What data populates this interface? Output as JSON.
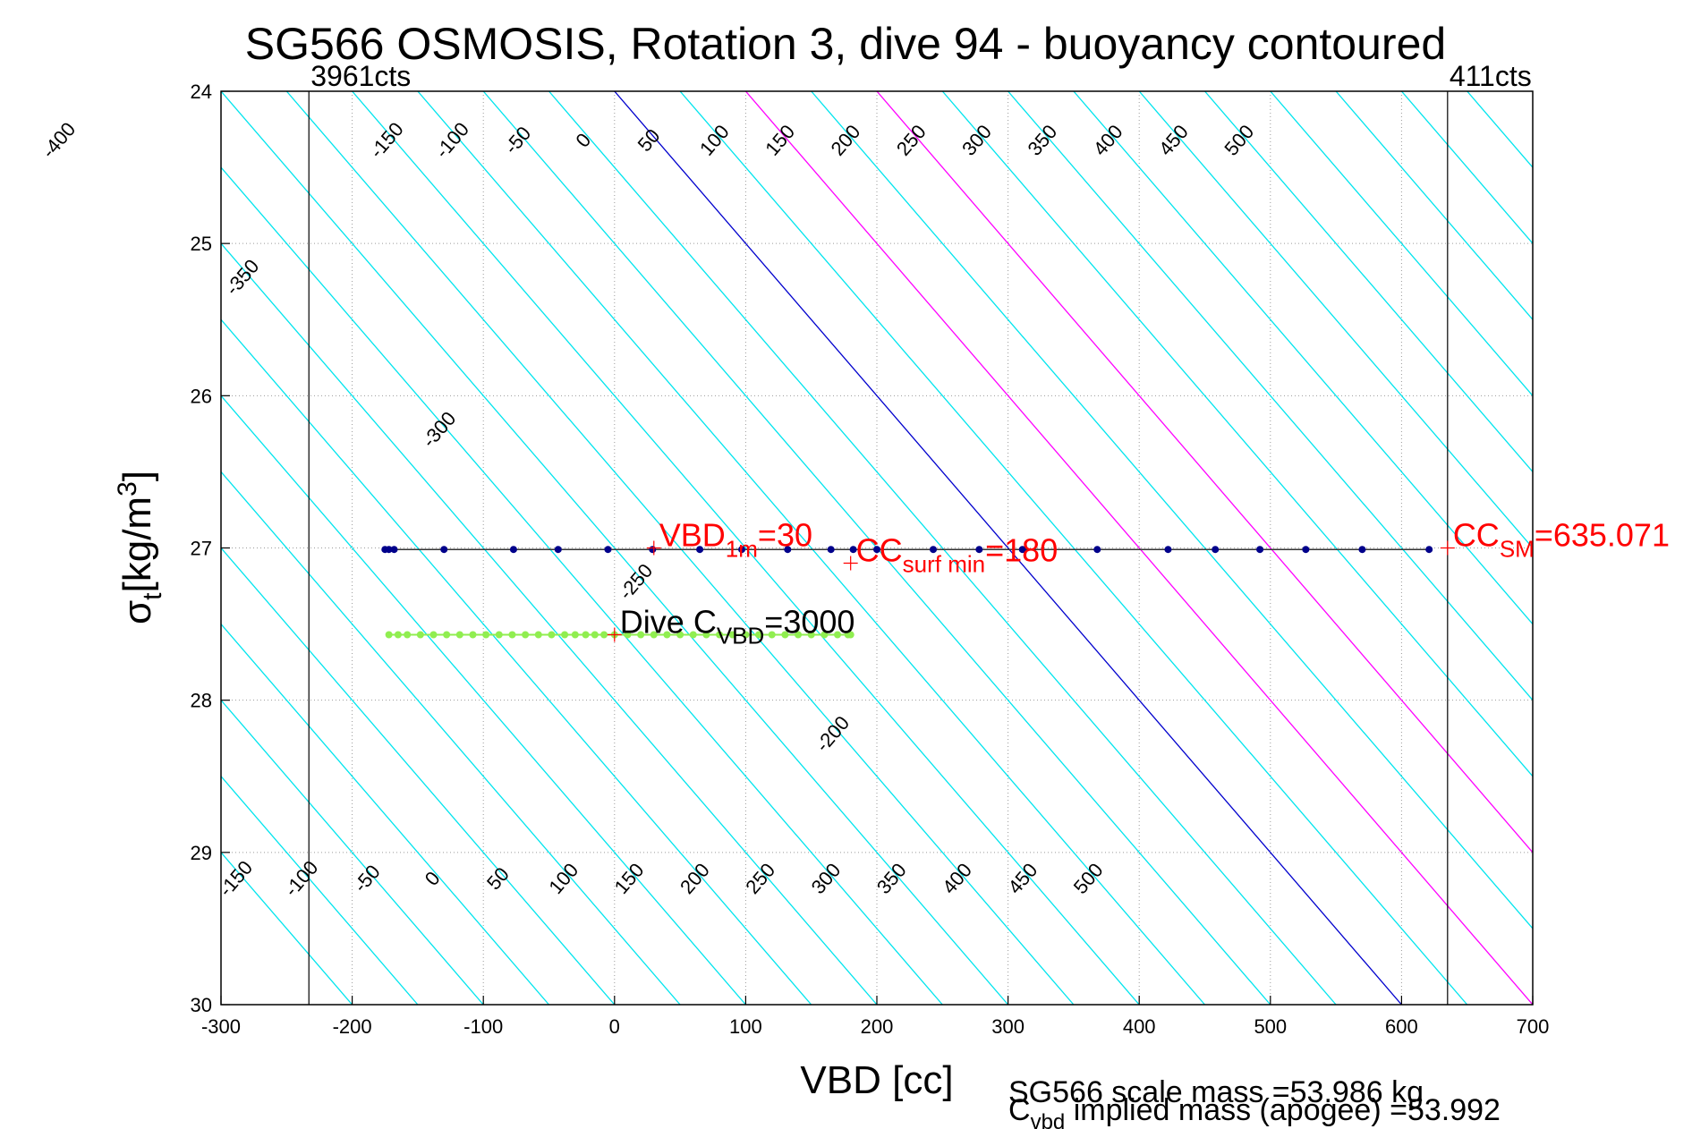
{
  "chart_data": {
    "type": "scatter",
    "title": "SG566 OSMOSIS, Rotation 3, dive 94 - buoyancy contoured",
    "xlabel": "VBD [cc]",
    "ylabel": {
      "main": "σ",
      "sub": "t",
      "unit_a": "[kg/m",
      "sup": "3",
      "unit_b": "]"
    },
    "xlim": [
      -300,
      700
    ],
    "ylim": [
      24,
      30
    ],
    "y_reversed": true,
    "grid": true,
    "xticks": [
      -300,
      -200,
      -100,
      0,
      100,
      200,
      300,
      400,
      500,
      600,
      700
    ],
    "yticks": [
      24,
      25,
      26,
      27,
      28,
      29,
      30
    ],
    "contour_slope_cc_per_kgm3": 100,
    "contours_top": {
      "ref_sigma": 24,
      "values": [
        -400,
        -150,
        -100,
        -50,
        0,
        50,
        100,
        150,
        200,
        250,
        300,
        350,
        400,
        450,
        500
      ]
    },
    "contours_side": {
      "values": [
        -350,
        -300,
        -250,
        -200
      ]
    },
    "contours_bottom": {
      "ref_sigma": 30,
      "values": [
        -150,
        -100,
        -50,
        0,
        50,
        100,
        150,
        200,
        250,
        300,
        350,
        400,
        450,
        500
      ]
    },
    "contour_colors": {
      "default": "#00e5ee",
      "zero": "#0000cd",
      "special": "#ff00ff"
    },
    "special_contours": [
      100,
      200
    ],
    "contour_start_x": -300,
    "contour_end_x": 700,
    "vertical_lines": [
      {
        "x": -233,
        "label": "3961cts"
      },
      {
        "x": 635.071,
        "label": "411cts"
      }
    ],
    "surface_trace": {
      "sigma": 27.01,
      "points_x": [
        -175,
        -172,
        -168,
        -130,
        -77,
        -43,
        -5,
        29,
        65,
        97,
        132,
        165,
        182,
        200,
        243,
        278,
        311,
        368,
        422,
        458,
        492,
        527,
        570,
        621
      ],
      "color": "#00008b"
    },
    "deep_trace": {
      "sigma": 27.57,
      "points_x": [
        -172,
        -165,
        -158,
        -148,
        -138,
        -128,
        -118,
        -108,
        -98,
        -88,
        -78,
        -68,
        -58,
        -48,
        -38,
        -30,
        -22,
        -15,
        -8,
        0,
        10,
        20,
        30,
        40,
        50,
        60,
        70,
        80,
        90,
        100,
        110,
        120,
        130,
        140,
        150,
        160,
        170,
        178,
        180
      ],
      "color": "#90ee50"
    },
    "annotations": [
      {
        "main": "VBD",
        "sub": "1m",
        "rest": "=30",
        "x": 30,
        "y": 27.0,
        "color": "#ff0000"
      },
      {
        "main": "CC",
        "sub": "surf min",
        "rest": "=180",
        "x": 180,
        "y": 27.1,
        "color": "#ff0000"
      },
      {
        "main": "CC",
        "sub": "SM",
        "rest": "=635.071",
        "x": 635.071,
        "y": 27.0,
        "color": "#ff0000"
      },
      {
        "main": "Dive C",
        "sub": "VBD",
        "rest": "=3000",
        "x": 0,
        "y": 27.57,
        "color": "#000000"
      }
    ],
    "footer": {
      "line1": "SG566 scale mass =53.986 kg",
      "line2_main": "C",
      "line2_sub": "vbd",
      "line2_rest": " implied mass (apogee) =53.992"
    }
  }
}
